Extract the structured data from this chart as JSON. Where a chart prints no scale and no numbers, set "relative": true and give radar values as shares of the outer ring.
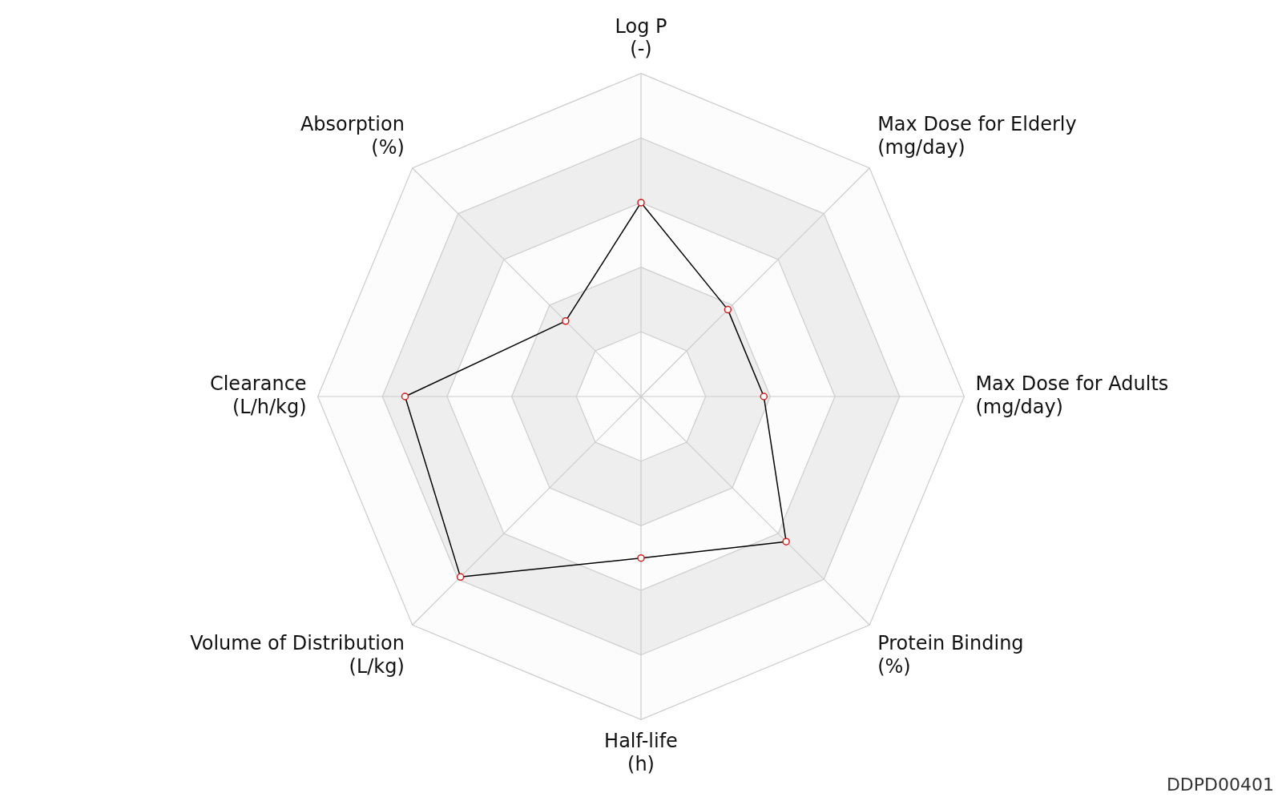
{
  "chart_data": {
    "type": "radar",
    "relative": true,
    "categories": [
      "Log P\n(-)",
      "Max Dose for Elderly\n(mg/day)",
      "Max Dose for Adults\n(mg/day)",
      "Protein Binding\n(%)",
      "Half-life\n(h)",
      "Volume of Distribution\n(L/kg)",
      "Clearance\n(L/h/kg)",
      "Absorption\n(%)"
    ],
    "series": [
      {
        "color": "#000000",
        "values": [
          0.6,
          0.38,
          0.38,
          0.635,
          0.5,
          0.79,
          0.73,
          0.33
        ]
      }
    ],
    "marker": "circle",
    "legend": false,
    "annotations": [
      "DDPD00401"
    ]
  }
}
